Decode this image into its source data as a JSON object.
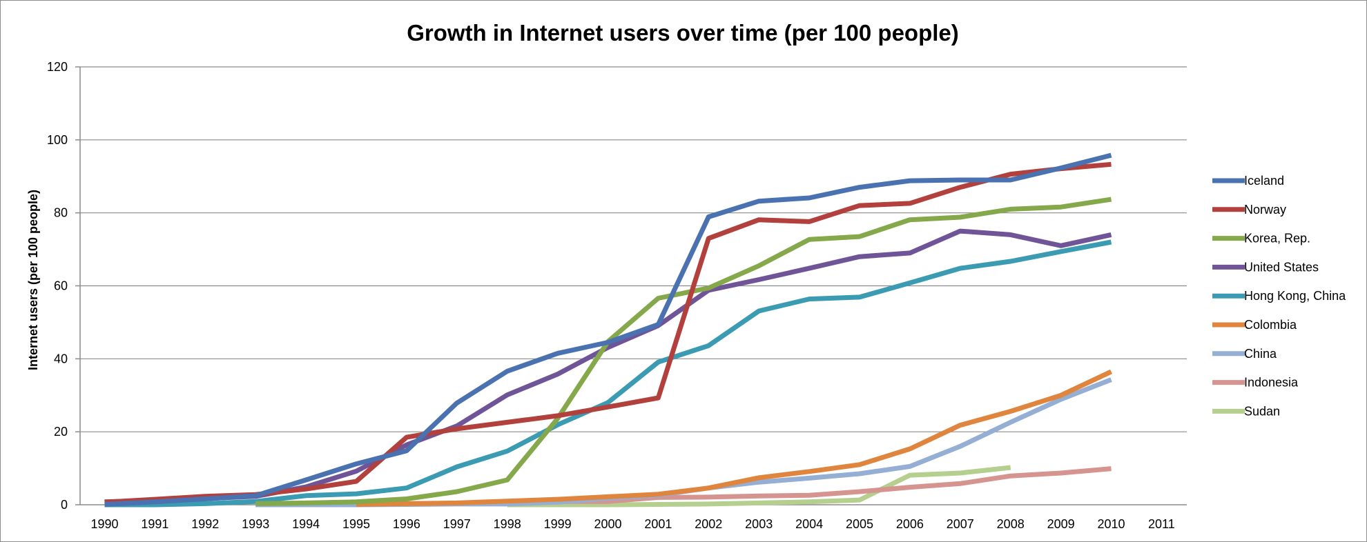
{
  "chart_data": {
    "type": "line",
    "title": "Growth in Internet users over time (per 100 people)",
    "xlabel": "",
    "ylabel": "Internet users (per 100 people)",
    "x": [
      1990,
      1991,
      1992,
      1993,
      1994,
      1995,
      1996,
      1997,
      1998,
      1999,
      2000,
      2001,
      2002,
      2003,
      2004,
      2005,
      2006,
      2007,
      2008,
      2009,
      2010,
      2011
    ],
    "xlim": [
      1990,
      2011
    ],
    "ylim": [
      0,
      120
    ],
    "yticks": [
      0,
      20,
      40,
      60,
      80,
      100,
      120
    ],
    "grid": "horizontal",
    "legend": "right",
    "series": [
      {
        "name": "Iceland",
        "color": "#4a72b0",
        "x": [
          1990,
          1991,
          1992,
          1993,
          1994,
          1995,
          1996,
          1997,
          1998,
          1999,
          2000,
          2001,
          2002,
          2003,
          2004,
          2005,
          2006,
          2007,
          2008,
          2009,
          2010
        ],
        "values": [
          0.1,
          0.8,
          1.6,
          2.5,
          6.8,
          11.2,
          14.8,
          27.9,
          36.6,
          41.5,
          44.5,
          49.4,
          78.9,
          83.2,
          84.1,
          87.0,
          88.8,
          89.0,
          89.0,
          92.3,
          95.8
        ]
      },
      {
        "name": "Norway",
        "color": "#b2403d",
        "x": [
          1990,
          1991,
          1992,
          1993,
          1994,
          1995,
          1996,
          1997,
          1998,
          1999,
          2000,
          2001,
          2002,
          2003,
          2004,
          2005,
          2006,
          2007,
          2008,
          2009,
          2010
        ],
        "values": [
          0.7,
          1.5,
          2.3,
          2.8,
          4.3,
          6.4,
          18.5,
          20.8,
          22.6,
          24.4,
          26.8,
          29.3,
          73.0,
          78.1,
          77.6,
          82.0,
          82.6,
          87.0,
          90.6,
          92.1,
          93.3
        ]
      },
      {
        "name": "Korea, Rep.",
        "color": "#84a84a",
        "x": [
          1993,
          1994,
          1995,
          1996,
          1997,
          1998,
          1999,
          2000,
          2001,
          2002,
          2003,
          2004,
          2005,
          2006,
          2007,
          2008,
          2009,
          2010
        ],
        "values": [
          0.3,
          0.5,
          0.8,
          1.6,
          3.6,
          6.8,
          23.6,
          44.7,
          56.6,
          59.4,
          65.5,
          72.7,
          73.5,
          78.1,
          78.8,
          81.0,
          81.6,
          83.7
        ]
      },
      {
        "name": "United States",
        "color": "#6f5497",
        "x": [
          1990,
          1991,
          1992,
          1993,
          1994,
          1995,
          1996,
          1997,
          1998,
          1999,
          2000,
          2001,
          2002,
          2003,
          2004,
          2005,
          2006,
          2007,
          2008,
          2009,
          2010
        ],
        "values": [
          0.8,
          1.2,
          1.7,
          2.3,
          4.9,
          9.2,
          16.4,
          21.6,
          30.1,
          35.8,
          43.1,
          49.1,
          58.8,
          61.7,
          64.8,
          68.0,
          69.0,
          75.0,
          74.0,
          71.0,
          74.0
        ]
      },
      {
        "name": "Hong Kong, China",
        "color": "#3b9bb3",
        "x": [
          1990,
          1991,
          1992,
          1993,
          1994,
          1995,
          1996,
          1997,
          1998,
          1999,
          2000,
          2001,
          2002,
          2003,
          2004,
          2005,
          2006,
          2007,
          2008,
          2009,
          2010
        ],
        "values": [
          0.0,
          0.0,
          0.3,
          0.9,
          2.5,
          3.0,
          4.6,
          10.4,
          14.7,
          21.9,
          28.0,
          39.1,
          43.6,
          53.1,
          56.4,
          56.9,
          60.8,
          64.8,
          66.7,
          69.4,
          72.0
        ]
      },
      {
        "name": "Colombia",
        "color": "#e0853d",
        "x": [
          1995,
          1996,
          1997,
          1998,
          1999,
          2000,
          2001,
          2002,
          2003,
          2004,
          2005,
          2006,
          2007,
          2008,
          2009,
          2010
        ],
        "values": [
          0.1,
          0.3,
          0.5,
          1.0,
          1.5,
          2.2,
          2.9,
          4.6,
          7.4,
          9.1,
          11.0,
          15.3,
          21.8,
          25.6,
          30.0,
          36.5
        ]
      },
      {
        "name": "China",
        "color": "#94aed4",
        "x": [
          1993,
          1994,
          1995,
          1996,
          1997,
          1998,
          1999,
          2000,
          2001,
          2002,
          2003,
          2004,
          2005,
          2006,
          2007,
          2008,
          2009,
          2010
        ],
        "values": [
          0.0,
          0.0,
          0.0,
          0.1,
          0.2,
          0.2,
          0.7,
          1.8,
          2.6,
          4.6,
          6.2,
          7.3,
          8.5,
          10.5,
          16.0,
          22.6,
          28.9,
          34.3
        ]
      },
      {
        "name": "Indonesia",
        "color": "#d69490",
        "x": [
          1994,
          1995,
          1996,
          1997,
          1998,
          1999,
          2000,
          2001,
          2002,
          2003,
          2004,
          2005,
          2006,
          2007,
          2008,
          2009,
          2010
        ],
        "values": [
          0.0,
          0.1,
          0.3,
          0.4,
          0.3,
          0.9,
          0.9,
          2.0,
          2.1,
          2.4,
          2.6,
          3.6,
          4.8,
          5.8,
          7.9,
          8.7,
          9.9
        ]
      },
      {
        "name": "Sudan",
        "color": "#b5cf8f",
        "x": [
          1998,
          1999,
          2000,
          2001,
          2002,
          2003,
          2004,
          2005,
          2006,
          2007,
          2008
        ],
        "values": [
          0.0,
          0.0,
          0.0,
          0.1,
          0.2,
          0.5,
          0.8,
          1.3,
          8.1,
          8.7,
          10.2
        ]
      }
    ]
  }
}
